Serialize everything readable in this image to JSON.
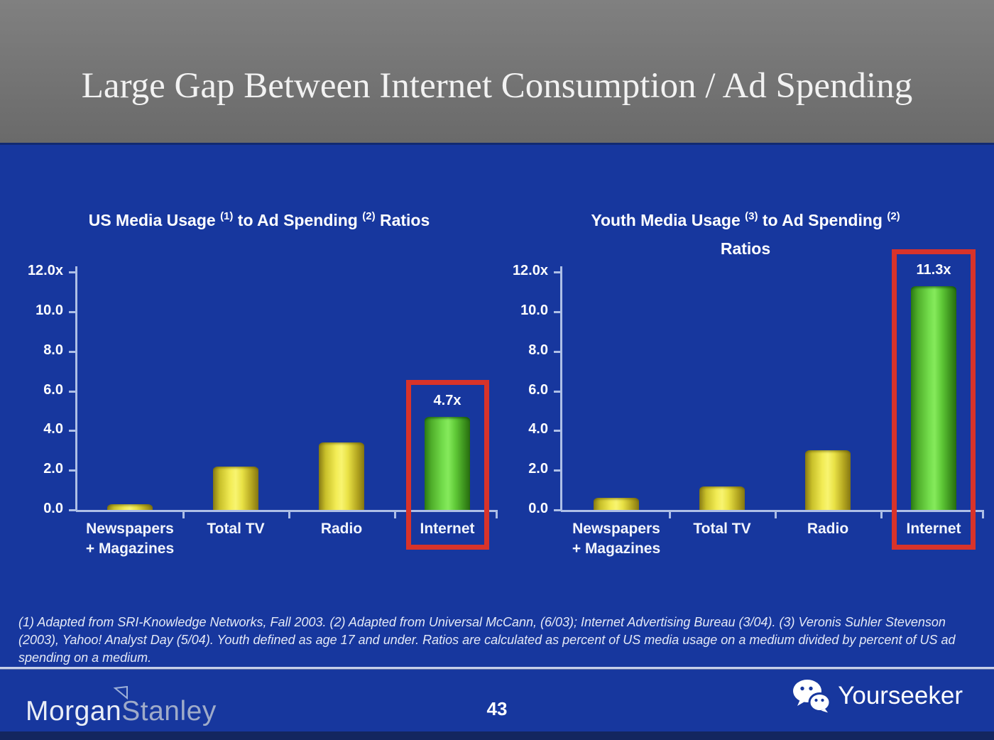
{
  "header": {
    "title": "Large Gap Between Internet Consumption / Ad Spending"
  },
  "footnote": "(1) Adapted from SRI-Knowledge Networks, Fall 2003.  (2) Adapted from Universal McCann, (6/03); Internet Advertising Bureau (3/04). (3) Veronis Suhler Stevenson (2003), Yahoo! Analyst Day (5/04).  Youth defined as age 17 and under.  Ratios are calculated as percent of US media usage on a medium divided by percent of US ad spending on a medium.",
  "footer": {
    "page_number": "43",
    "brand": {
      "word1": "Morgan",
      "word2": "Stanley",
      "logo_icon": "pennant-icon"
    },
    "watermark": {
      "label": "Yourseeker",
      "icon": "wechat-icon"
    }
  },
  "colors": {
    "slide_background": "#17379e",
    "header_background": "#767676",
    "bar_yellow": "#f2ec55",
    "bar_green": "#74dd4c",
    "highlight_red": "#d8332a",
    "axis_line": "#aebfe6",
    "bottom_strip": "#13265f"
  },
  "chart_data": [
    {
      "type": "bar",
      "title": "US Media Usage (1) to Ad Spending (2) Ratios",
      "title_segments": [
        {
          "text": "US Media Usage "
        },
        {
          "sup": "(1)"
        },
        {
          "text": " to Ad Spending "
        },
        {
          "sup": "(2)"
        },
        {
          "text": " Ratios"
        }
      ],
      "categories": [
        [
          "Newspapers",
          "+ Magazines"
        ],
        [
          "Total TV"
        ],
        [
          "Radio"
        ],
        [
          "Internet"
        ]
      ],
      "values": [
        0.3,
        2.2,
        3.4,
        4.7
      ],
      "bar_colors": [
        "yellow",
        "yellow",
        "yellow",
        "green"
      ],
      "value_labels": [
        "",
        "",
        "",
        "4.7x"
      ],
      "highlight_index": 3,
      "ylim": [
        0,
        12
      ],
      "yticks": [
        {
          "v": 12,
          "label": "12.0x"
        },
        {
          "v": 10,
          "label": "10.0"
        },
        {
          "v": 8,
          "label": "8.0"
        },
        {
          "v": 6,
          "label": "6.0"
        },
        {
          "v": 4,
          "label": "4.0"
        },
        {
          "v": 2,
          "label": "2.0"
        },
        {
          "v": 0,
          "label": "0.0"
        }
      ],
      "grid": false,
      "legend": "none"
    },
    {
      "type": "bar",
      "title": "Youth Media Usage (3) to Ad Spending (2) Ratios",
      "title_segments": [
        {
          "text": "Youth Media Usage "
        },
        {
          "sup": "(3)"
        },
        {
          "text": " to Ad Spending "
        },
        {
          "sup": "(2)"
        }
      ],
      "title_line2": "Ratios",
      "categories": [
        [
          "Newspapers",
          "+ Magazines"
        ],
        [
          "Total TV"
        ],
        [
          "Radio"
        ],
        [
          "Internet"
        ]
      ],
      "values": [
        0.6,
        1.2,
        3.0,
        11.3
      ],
      "bar_colors": [
        "yellow",
        "yellow",
        "yellow",
        "green"
      ],
      "value_labels": [
        "",
        "",
        "",
        "11.3x"
      ],
      "highlight_index": 3,
      "ylim": [
        0,
        12
      ],
      "yticks": [
        {
          "v": 12,
          "label": "12.0x"
        },
        {
          "v": 10,
          "label": "10.0"
        },
        {
          "v": 8,
          "label": "8.0"
        },
        {
          "v": 6,
          "label": "6.0"
        },
        {
          "v": 4,
          "label": "4.0"
        },
        {
          "v": 2,
          "label": "2.0"
        },
        {
          "v": 0,
          "label": "0.0"
        }
      ],
      "grid": false,
      "legend": "none"
    }
  ]
}
